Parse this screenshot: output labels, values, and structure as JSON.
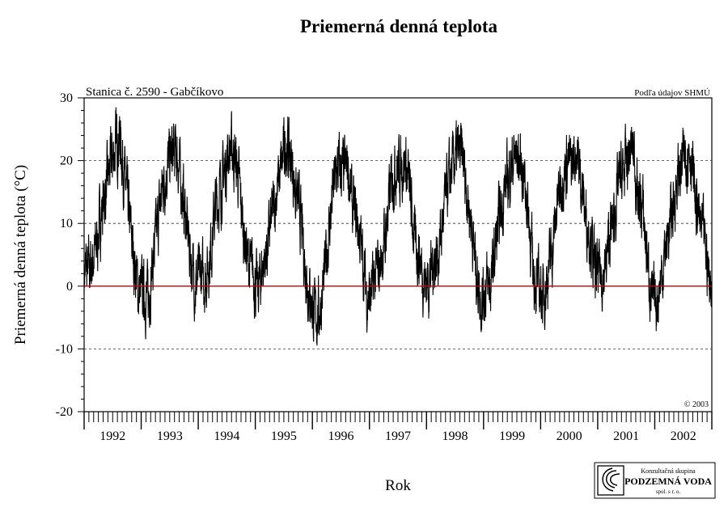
{
  "chart_data": {
    "type": "line",
    "title": "Priemerná denná teplota",
    "station": "Stanica č. 2590 - Gabčíkovo",
    "source_note": "Podľa údajov SHMÚ",
    "copyright": "© 2003",
    "xlabel": "Rok",
    "ylabel": "Priemerná denná teplota (°C)",
    "ylim": [
      -20,
      30
    ],
    "yticks": [
      -20,
      -10,
      0,
      10,
      20,
      30
    ],
    "ytick_labels": [
      "-20",
      "-10",
      "0",
      "10",
      "20",
      "30"
    ],
    "grid": "dashed horizontal at 20, 10, -10",
    "reference_line": {
      "y": 0,
      "color": "#cc0000"
    },
    "xlim": [
      "1992-01-01",
      "2002-12-31"
    ],
    "year_labels": [
      "1992",
      "1993",
      "1994",
      "1995",
      "1996",
      "1997",
      "1998",
      "1999",
      "2000",
      "2001",
      "2002"
    ],
    "x_minor_ticks": "monthly",
    "line_color": "#000000",
    "series": [
      {
        "values_note": "monthly mean of daily temperature (°C), Jan 1992 - Dec 2002",
        "start": "1992-01",
        "values": [
          2,
          3,
          6,
          11,
          15,
          19,
          22,
          24,
          17,
          11,
          4,
          -1,
          -1,
          -2,
          4,
          10,
          16,
          19,
          21,
          21,
          16,
          10,
          4,
          0,
          2,
          1,
          5,
          12,
          15,
          18,
          22,
          21,
          17,
          9,
          4,
          2,
          -1,
          3,
          6,
          11,
          15,
          19,
          23,
          20,
          15,
          11,
          3,
          -1,
          -5,
          -4,
          1,
          9,
          16,
          19,
          18,
          19,
          12,
          10,
          5,
          -2,
          -1,
          2,
          4,
          9,
          16,
          19,
          19,
          20,
          15,
          7,
          5,
          1,
          1,
          4,
          5,
          11,
          16,
          19,
          21,
          21,
          15,
          10,
          2,
          -2,
          0,
          0,
          6,
          11,
          16,
          18,
          21,
          20,
          18,
          11,
          2,
          0,
          -2,
          2,
          6,
          13,
          17,
          20,
          19,
          22,
          17,
          11,
          8,
          2,
          2,
          2,
          8,
          11,
          17,
          18,
          21,
          22,
          14,
          12,
          4,
          -3,
          -2,
          2,
          7,
          11,
          16,
          19,
          21,
          22,
          14,
          10,
          7,
          1
        ]
      }
    ]
  },
  "logo": {
    "line1": "Konzultačná skupina",
    "line2": "PODZEMNÁ VODA",
    "line3": "spol. s r. o."
  }
}
